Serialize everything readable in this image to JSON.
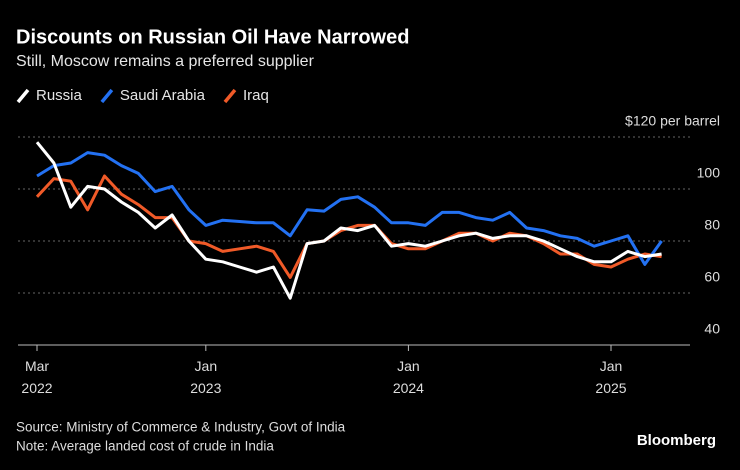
{
  "chart_data": {
    "type": "line",
    "title": "Discounts on Russian Oil Have Narrowed",
    "subtitle": "Still, Moscow remains a preferred supplier",
    "x": [
      "2022-03",
      "2022-04",
      "2022-05",
      "2022-06",
      "2022-07",
      "2022-08",
      "2022-09",
      "2022-10",
      "2022-11",
      "2022-12",
      "2023-01",
      "2023-02",
      "2023-03",
      "2023-04",
      "2023-05",
      "2023-06",
      "2023-07",
      "2023-08",
      "2023-09",
      "2023-10",
      "2023-11",
      "2023-12",
      "2024-01",
      "2024-02",
      "2024-03",
      "2024-04",
      "2024-05",
      "2024-06",
      "2024-07",
      "2024-08",
      "2024-09",
      "2024-10",
      "2024-11",
      "2024-12",
      "2025-01",
      "2025-02",
      "2025-03",
      "2025-04"
    ],
    "series": [
      {
        "name": "Russia",
        "color": "#ffffff",
        "values": [
          118,
          110,
          93,
          101,
          100,
          95,
          91,
          85,
          90,
          80,
          73,
          72,
          70,
          68,
          70,
          58,
          79,
          80,
          85,
          84,
          86,
          78,
          79,
          78,
          80,
          82,
          83,
          81,
          82,
          82,
          80,
          77,
          74,
          72,
          72,
          76,
          74,
          75
        ]
      },
      {
        "name": "Saudi Arabia",
        "color": "#2371f2",
        "values": [
          105,
          109,
          110,
          114,
          113,
          109,
          106,
          99,
          101,
          92,
          86,
          88,
          87.5,
          87,
          87,
          82,
          92,
          91.5,
          96,
          97,
          93,
          87,
          87,
          86,
          91,
          91,
          89,
          88,
          91,
          85,
          84,
          82,
          81,
          78,
          80,
          82,
          71,
          80
        ]
      },
      {
        "name": "Iraq",
        "color": "#f05a28",
        "values": [
          97,
          104,
          103,
          92,
          105,
          98,
          94,
          89,
          89,
          80,
          79,
          76,
          77,
          78,
          76,
          66,
          79,
          80,
          84,
          86,
          86,
          79,
          77,
          77,
          80,
          83,
          83,
          80,
          83,
          82,
          79,
          75,
          75,
          71,
          70,
          73,
          75,
          74
        ]
      }
    ],
    "ylim": [
      40,
      120
    ],
    "yticks": [
      40,
      60,
      80,
      100,
      {
        "value": 120,
        "label": "$120 per barrel"
      }
    ],
    "xticks": [
      {
        "value": "2022-03",
        "label": "Mar 2022"
      },
      {
        "value": "2023-01",
        "label": "Jan 2023"
      },
      {
        "value": "2024-01",
        "label": "Jan 2024"
      },
      {
        "value": "2025-01",
        "label": "Jan 2025"
      }
    ],
    "grid": true,
    "source": "Source: Ministry of Commerce & Industry, Govt of India",
    "note": "Note: Average landed cost of crude in India",
    "brand": "Bloomberg"
  }
}
